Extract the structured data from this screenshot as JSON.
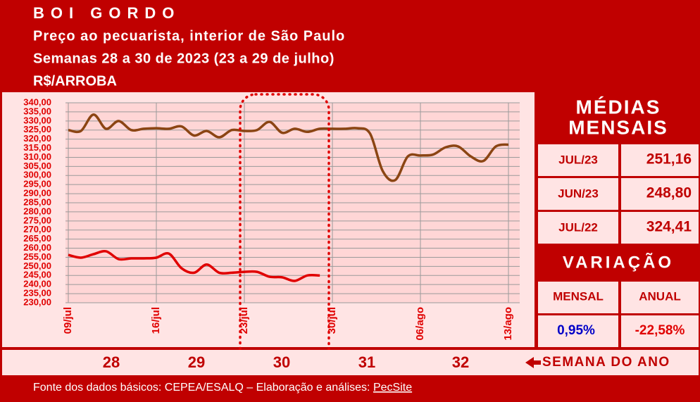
{
  "header": {
    "title": "BOI GORDO",
    "subtitle": "Preço ao pecuarista, interior de São Paulo",
    "period": "Semanas 28 a 30 de 2023 (23 a 29 de julho)",
    "unit": "R$/ARROBA"
  },
  "chart_data": {
    "type": "line",
    "grid": true,
    "categories": [
      "09/jul",
      null,
      null,
      null,
      null,
      null,
      null,
      "16/jul",
      null,
      null,
      null,
      null,
      null,
      null,
      "23/jul",
      null,
      null,
      null,
      null,
      null,
      null,
      "30/jul",
      null,
      null,
      null,
      null,
      null,
      null,
      "06/ago",
      null,
      null,
      null,
      null,
      null,
      null,
      "13/ago"
    ],
    "series": [
      {
        "color": "#8b4513",
        "values": [
          325,
          324.5,
          333.5,
          325.7,
          330,
          325,
          325.7,
          326,
          325.7,
          327,
          322,
          324.5,
          321,
          325,
          324.5,
          325,
          329.5,
          323.5,
          325.7,
          324,
          325.7,
          325.7,
          325.7,
          326,
          323,
          302.5,
          297.5,
          310.5,
          311,
          311.5,
          315.5,
          316,
          310.5,
          308,
          316,
          317
        ]
      },
      {
        "color": "#e00000",
        "values": [
          256.3,
          254.8,
          256.7,
          258.3,
          254,
          254.4,
          254.4,
          254.8,
          257,
          249,
          246.5,
          251,
          246.5,
          246.5,
          247,
          247,
          244.3,
          244,
          242,
          245,
          245,
          null,
          null,
          null,
          null,
          null,
          null,
          null,
          null,
          null,
          null,
          null,
          null,
          null,
          null,
          null
        ]
      }
    ],
    "ylim": [
      230,
      340
    ],
    "yticks": [
      {
        "value": 230,
        "label": "230,00"
      },
      {
        "value": 235,
        "label": "235,00"
      },
      {
        "value": 240,
        "label": "240,00"
      },
      {
        "value": 245,
        "label": "245,00"
      },
      {
        "value": 250,
        "label": "250,00"
      },
      {
        "value": 255,
        "label": "255,00"
      },
      {
        "value": 260,
        "label": "260,00"
      },
      {
        "value": 265,
        "label": "265,00"
      },
      {
        "value": 270,
        "label": "270,00"
      },
      {
        "value": 275,
        "label": "275,00"
      },
      {
        "value": 280,
        "label": "280,00"
      },
      {
        "value": 285,
        "label": "285,00"
      },
      {
        "value": 290,
        "label": "290,00"
      },
      {
        "value": 295,
        "label": "295,00"
      },
      {
        "value": 300,
        "label": "300,00"
      },
      {
        "value": 305,
        "label": "305,00"
      },
      {
        "value": 310,
        "label": "310,00"
      },
      {
        "value": 315,
        "label": "315,00"
      },
      {
        "value": 320,
        "label": "320,00"
      },
      {
        "value": 325,
        "label": "325,00"
      },
      {
        "value": 330,
        "label": "330,00"
      },
      {
        "value": 335,
        "label": "335,00"
      },
      {
        "value": 340,
        "label": "340,00"
      }
    ]
  },
  "monthly_averages": {
    "title_line1": "MÉDIAS",
    "title_line2": "MENSAIS",
    "rows": [
      [
        "JUL/23",
        "251,16"
      ],
      [
        "JUN/23",
        "248,80"
      ],
      [
        "JUL/22",
        "324,41"
      ]
    ]
  },
  "variation": {
    "title": "VARIAÇÃO",
    "monthly_label": "MENSAL",
    "annual_label": "ANUAL",
    "monthly_value": "0,95%",
    "annual_value": "-22,58%"
  },
  "weeks": {
    "numbers": [
      "28",
      "29",
      "30",
      "31",
      "32"
    ],
    "label": "SEMANA DO ANO"
  },
  "footer": {
    "text": "Fonte dos dados básicos: CEPEA/ESALQ – Elaboração e análises: ",
    "link": "PecSite"
  }
}
